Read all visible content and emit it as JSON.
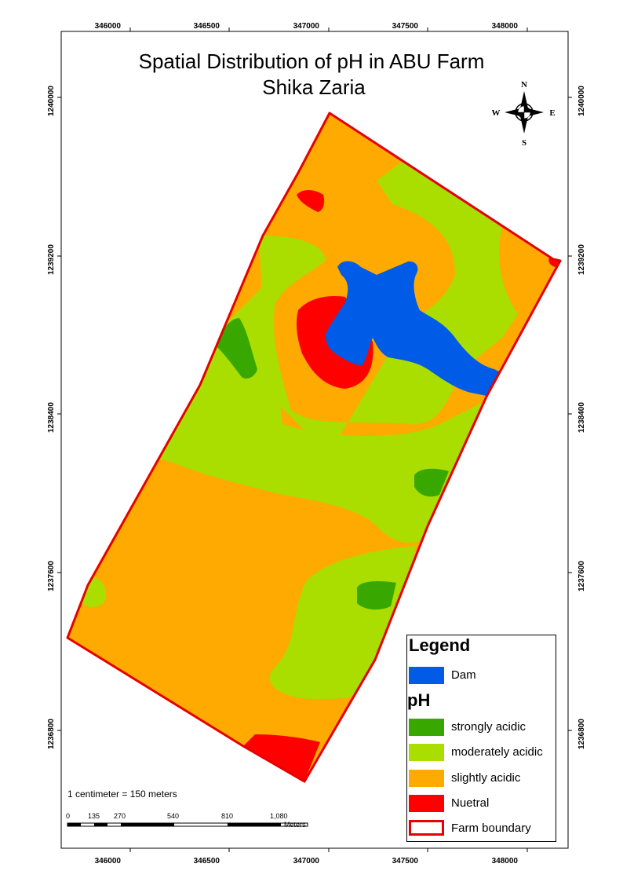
{
  "map": {
    "title_line1": "Spatial Distribution of pH in ABU Farm",
    "title_line2": "Shika Zaria"
  },
  "grid": {
    "x_ticks": [
      "346000",
      "346500",
      "347000",
      "347500",
      "348000"
    ],
    "y_ticks": [
      "1240000",
      "1239200",
      "1238400",
      "1237600",
      "1236800"
    ]
  },
  "compass": {
    "n": "N",
    "s": "S",
    "e": "E",
    "w": "W"
  },
  "legend": {
    "title": "Legend",
    "dam_label": "Dam",
    "ph_title": "pH",
    "items": [
      {
        "label": "strongly acidic",
        "color": "#38a800"
      },
      {
        "label": "moderately acidic",
        "color": "#aadd00"
      },
      {
        "label": "slightly acidic",
        "color": "#ffaa00"
      },
      {
        "label": "Nuetral",
        "color": "#ff0000"
      }
    ],
    "dam_color": "#005ce6",
    "boundary_label": "Farm boundary",
    "boundary_color": "#e60000"
  },
  "scale": {
    "text": "1 centimeter = 150 meters",
    "numbers": [
      "0",
      "135",
      "270",
      "540",
      "810",
      "1,080"
    ],
    "unit": "Meters"
  }
}
